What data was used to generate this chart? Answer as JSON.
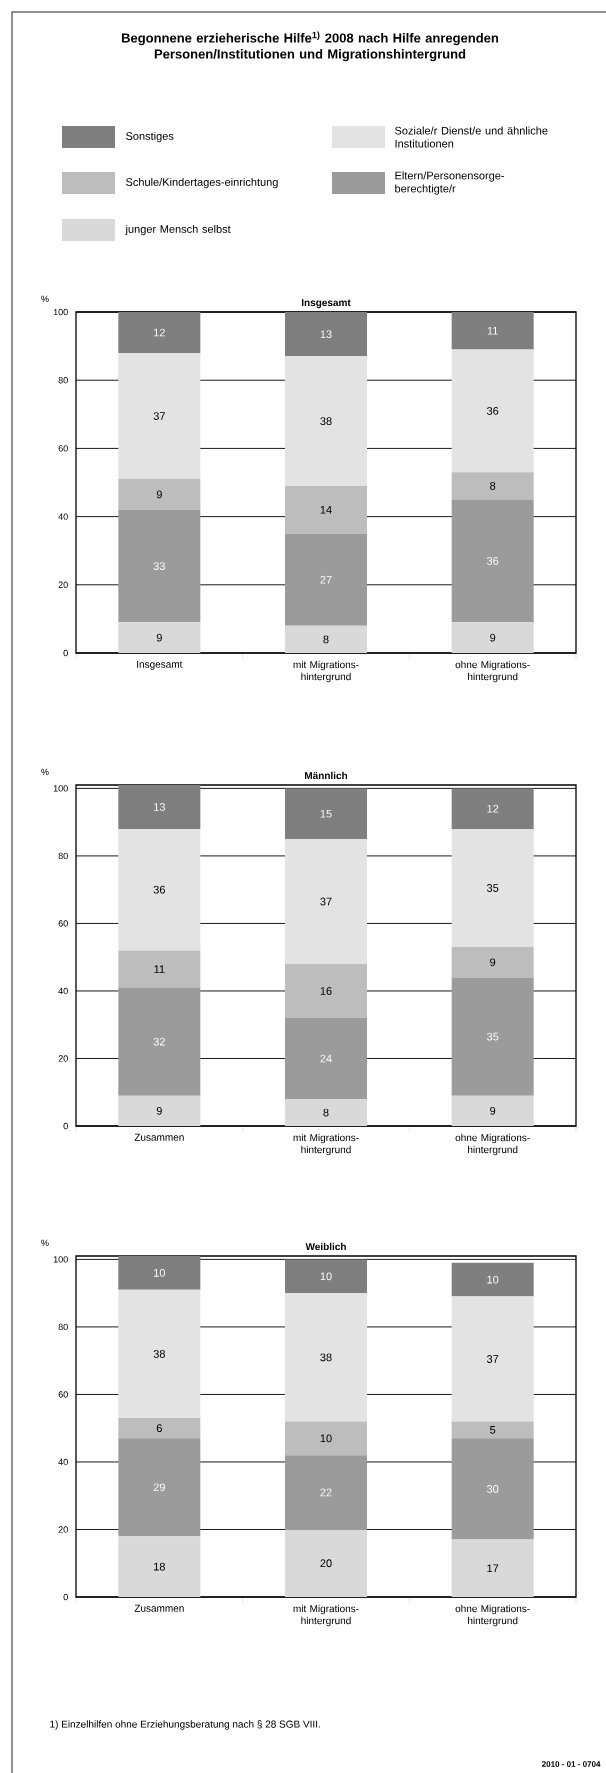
{
  "chart_data": [
    {
      "type": "bar",
      "title": "Begonnene erzieherische Hilfe$^{1)}$ 2008 nach Hilfe anregenden Personen/Institutionen und Migrationshintergrund",
      "subtitle": "Insgesamt",
      "ylabel": "%",
      "categories": [
        "Insgesamt",
        "mit Migrations-hintergrund",
        "ohne Migrations-hintergrund"
      ],
      "stacked": true,
      "ylim": [
        0,
        100
      ],
      "yticks": [
        0,
        20,
        40,
        60,
        80,
        100
      ],
      "grid": "y",
      "data_labels": true,
      "legend": "top",
      "series": [
        {
          "name": "junger Mensch selbst",
          "color": "#d9d9d9",
          "values": [
            9,
            8,
            9
          ]
        },
        {
          "name": "Eltern/Personensorge-berechtigte/r",
          "color": "#9b9b9b",
          "values": [
            33,
            27,
            36
          ]
        },
        {
          "name": "Schule/Kindertages-einrichtung",
          "color": "#bdbdbd",
          "values": [
            9,
            14,
            8
          ]
        },
        {
          "name": "Soziale/r Dienst/e und ähnliche Institutionen",
          "color": "#e3e3e3",
          "values": [
            37,
            38,
            36
          ]
        },
        {
          "name": "Sonstiges",
          "color": "#7f7f7f",
          "values": [
            12,
            13,
            11
          ]
        }
      ]
    },
    {
      "type": "bar",
      "title": "Männlich",
      "ylabel": "%",
      "categories": [
        "Zusammen",
        "mit Migrations-hintergrund",
        "ohne Migrations-hintergrund"
      ],
      "stacked": true,
      "ylim": [
        0,
        101
      ],
      "yticks": [
        0,
        20,
        40,
        60,
        80,
        100
      ],
      "grid": "y",
      "data_labels": true,
      "series": [
        {
          "color": "#d9d9d9",
          "values": [
            9,
            8,
            9
          ]
        },
        {
          "color": "#9b9b9b",
          "values": [
            32,
            24,
            35
          ]
        },
        {
          "color": "#bdbdbd",
          "values": [
            11,
            16,
            9
          ]
        },
        {
          "color": "#e3e3e3",
          "values": [
            36,
            37,
            35
          ]
        },
        {
          "color": "#7f7f7f",
          "values": [
            13,
            15,
            12
          ]
        }
      ]
    },
    {
      "type": "bar",
      "title": "Weiblich",
      "ylabel": "%",
      "categories": [
        "Zusammen",
        "mit Migrations-hintergrund",
        "ohne Migrations-hintergrund"
      ],
      "stacked": true,
      "ylim": [
        0,
        101
      ],
      "yticks": [
        0,
        20,
        40,
        60,
        80,
        100
      ],
      "grid": "y",
      "data_labels": true,
      "annotations": [
        "1) Einzelhilfen ohne Erziehungsberatung nach § 28 SGB VIII.",
        "2010 - 01 - 0704"
      ],
      "series": [
        {
          "color": "#d9d9d9",
          "values": [
            18,
            20,
            17
          ]
        },
        {
          "color": "#9b9b9b",
          "values": [
            29,
            22,
            30
          ]
        },
        {
          "color": "#bdbdbd",
          "values": [
            6,
            10,
            5
          ]
        },
        {
          "color": "#e3e3e3",
          "values": [
            38,
            38,
            37
          ]
        },
        {
          "color": "#7f7f7f",
          "values": [
            10,
            10,
            10
          ]
        }
      ]
    }
  ]
}
